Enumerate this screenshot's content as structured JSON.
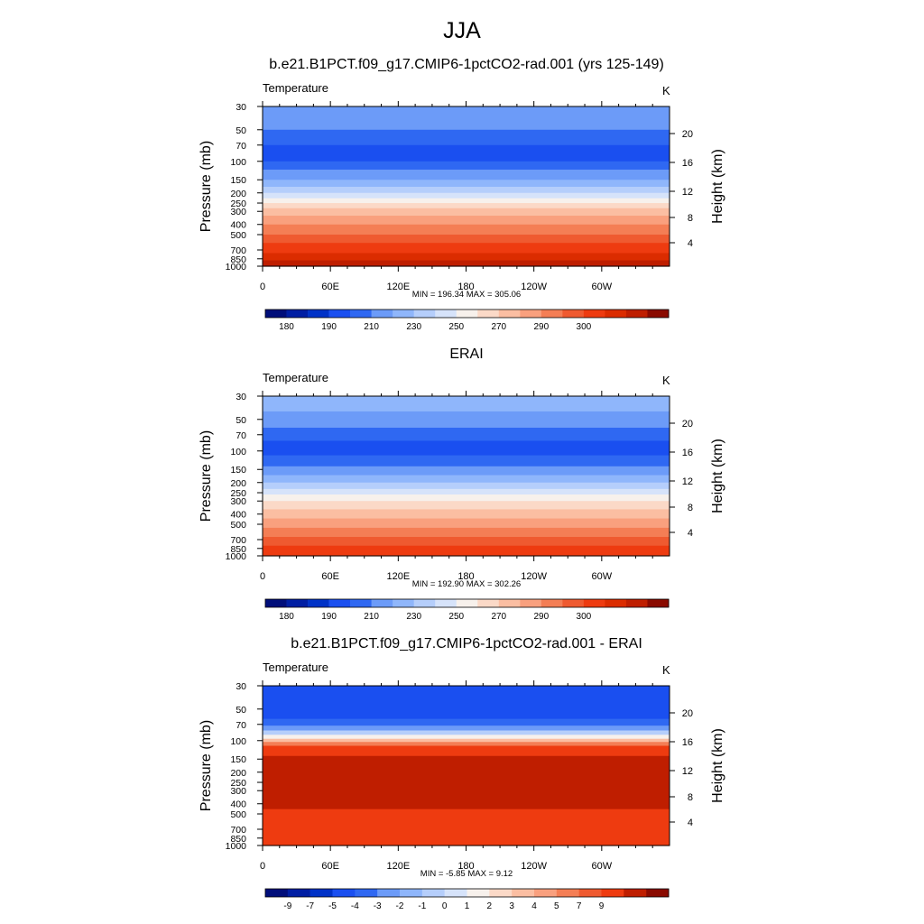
{
  "title": "JJA",
  "chart_data": [
    {
      "type": "heatmap",
      "title": "b.e21.B1PCT.f09_g17.CMIP6-1pctCO2-rad.001 (yrs 125-149)",
      "variable": "Temperature",
      "units": "K",
      "ylabel": "Pressure (mb)",
      "y2label": "Height (km)",
      "yticks": [
        "30",
        "50",
        "70",
        "100",
        "150",
        "200",
        "250",
        "300",
        "400",
        "500",
        "700",
        "850",
        "1000"
      ],
      "y2ticks": [
        "20",
        "16",
        "12",
        "8",
        "4"
      ],
      "xticks": [
        "0",
        "60E",
        "120E",
        "180",
        "120W",
        "60W"
      ],
      "stats": "MIN = 196.34  MAX = 305.06",
      "colorbar_labels": [
        "180",
        "190",
        "210",
        "230",
        "250",
        "270",
        "290",
        "300"
      ],
      "bands": [
        {
          "from": "30",
          "to": "50",
          "color": "#6c9bf8"
        },
        {
          "from": "50",
          "to": "70",
          "color": "#2f68f2"
        },
        {
          "from": "70",
          "to": "100",
          "color": "#1a4ff0"
        },
        {
          "from": "100",
          "to": "120",
          "color": "#2f68f2"
        },
        {
          "from": "120",
          "to": "150",
          "color": "#6c9bf8"
        },
        {
          "from": "150",
          "to": "175",
          "color": "#8fb6fb"
        },
        {
          "from": "175",
          "to": "200",
          "color": "#b5cefb"
        },
        {
          "from": "200",
          "to": "225",
          "color": "#d6e3fa"
        },
        {
          "from": "225",
          "to": "250",
          "color": "#f7f1ec"
        },
        {
          "from": "250",
          "to": "280",
          "color": "#fbd9c7"
        },
        {
          "from": "280",
          "to": "330",
          "color": "#fbbea2"
        },
        {
          "from": "330",
          "to": "400",
          "color": "#f9a07e"
        },
        {
          "from": "400",
          "to": "500",
          "color": "#f47e55"
        },
        {
          "from": "500",
          "to": "600",
          "color": "#ef5a30"
        },
        {
          "from": "600",
          "to": "750",
          "color": "#ee3b10"
        },
        {
          "from": "750",
          "to": "880",
          "color": "#db2c00"
        },
        {
          "from": "880",
          "to": "1000",
          "color": "#bf1e00"
        }
      ]
    },
    {
      "type": "heatmap",
      "title": "ERAI",
      "variable": "Temperature",
      "units": "K",
      "ylabel": "Pressure (mb)",
      "y2label": "Height (km)",
      "yticks": [
        "30",
        "50",
        "70",
        "100",
        "150",
        "200",
        "250",
        "300",
        "400",
        "500",
        "700",
        "850",
        "1000"
      ],
      "y2ticks": [
        "20",
        "16",
        "12",
        "8",
        "4"
      ],
      "xticks": [
        "0",
        "60E",
        "120E",
        "180",
        "120W",
        "60W"
      ],
      "stats": "MIN = 192.90  MAX = 302.26",
      "colorbar_labels": [
        "180",
        "190",
        "210",
        "230",
        "250",
        "270",
        "290",
        "300"
      ],
      "bands": [
        {
          "from": "30",
          "to": "42",
          "color": "#8fb6fb"
        },
        {
          "from": "42",
          "to": "60",
          "color": "#6c9bf8"
        },
        {
          "from": "60",
          "to": "80",
          "color": "#2f68f2"
        },
        {
          "from": "80",
          "to": "110",
          "color": "#1a4ff0"
        },
        {
          "from": "110",
          "to": "140",
          "color": "#2f68f2"
        },
        {
          "from": "140",
          "to": "170",
          "color": "#6c9bf8"
        },
        {
          "from": "170",
          "to": "200",
          "color": "#8fb6fb"
        },
        {
          "from": "200",
          "to": "230",
          "color": "#b5cefb"
        },
        {
          "from": "230",
          "to": "260",
          "color": "#d6e3fa"
        },
        {
          "from": "260",
          "to": "300",
          "color": "#f7f1ec"
        },
        {
          "from": "300",
          "to": "360",
          "color": "#fbd9c7"
        },
        {
          "from": "360",
          "to": "440",
          "color": "#fbbea2"
        },
        {
          "from": "440",
          "to": "540",
          "color": "#f9a07e"
        },
        {
          "from": "540",
          "to": "660",
          "color": "#f47e55"
        },
        {
          "from": "660",
          "to": "800",
          "color": "#ef5a30"
        },
        {
          "from": "800",
          "to": "1000",
          "color": "#ee3b10"
        }
      ]
    },
    {
      "type": "heatmap",
      "title": "b.e21.B1PCT.f09_g17.CMIP6-1pctCO2-rad.001 - ERAI",
      "variable": "Temperature",
      "units": "K",
      "ylabel": "Pressure (mb)",
      "y2label": "Height (km)",
      "yticks": [
        "30",
        "50",
        "70",
        "100",
        "150",
        "200",
        "250",
        "300",
        "400",
        "500",
        "700",
        "850",
        "1000"
      ],
      "y2ticks": [
        "20",
        "16",
        "12",
        "8",
        "4"
      ],
      "xticks": [
        "0",
        "60E",
        "120E",
        "180",
        "120W",
        "60W"
      ],
      "stats": "MIN =  -5.85  MAX =   9.12",
      "colorbar_labels": [
        "-9",
        "-7",
        "-5",
        "-4",
        "-3",
        "-2",
        "-1",
        "0",
        "1",
        "2",
        "3",
        "4",
        "5",
        "7",
        "9"
      ],
      "bands": [
        {
          "from": "30",
          "to": "62",
          "color": "#1a4ff0"
        },
        {
          "from": "62",
          "to": "72",
          "color": "#2f68f2"
        },
        {
          "from": "72",
          "to": "80",
          "color": "#6c9bf8"
        },
        {
          "from": "80",
          "to": "88",
          "color": "#b5cefb"
        },
        {
          "from": "88",
          "to": "96",
          "color": "#f7f1ec"
        },
        {
          "from": "96",
          "to": "103",
          "color": "#fbbea2"
        },
        {
          "from": "103",
          "to": "112",
          "color": "#f47e55"
        },
        {
          "from": "112",
          "to": "140",
          "color": "#ee3b10"
        },
        {
          "from": "140",
          "to": "450",
          "color": "#bf1e00"
        },
        {
          "from": "450",
          "to": "1000",
          "color": "#ee3b10"
        }
      ]
    }
  ]
}
